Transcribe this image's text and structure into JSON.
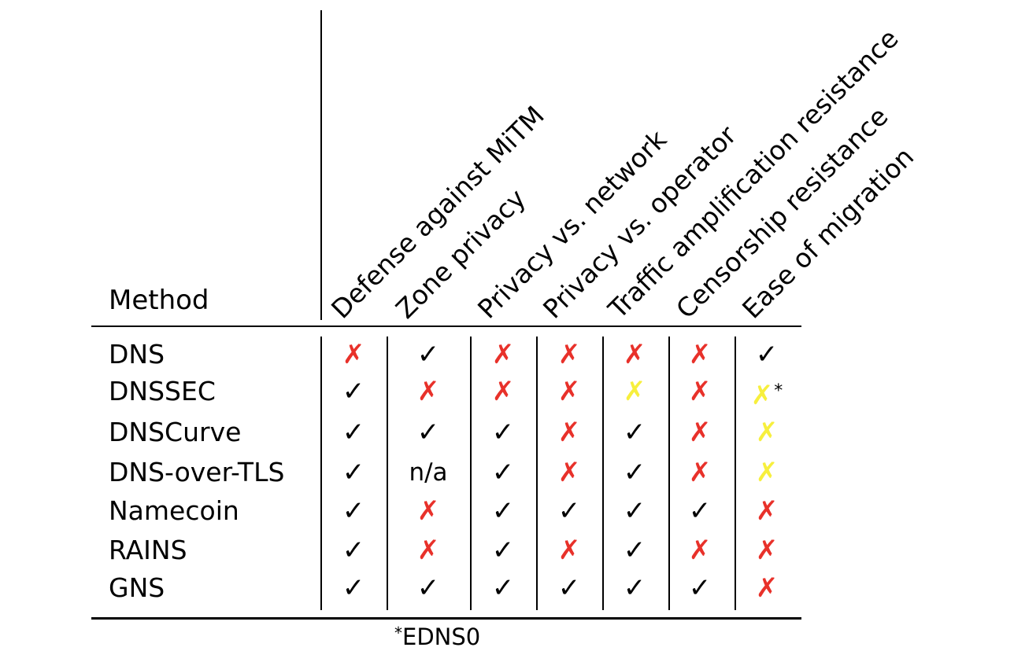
{
  "table": {
    "method_header": "Method",
    "columns": [
      "Defense against MiTM",
      "Zone privacy",
      "Privacy vs. network",
      "Privacy vs. operator",
      "Traffic amplification resistance",
      "Censorship resistance",
      "Ease of migration"
    ],
    "symbols": {
      "check": "✓",
      "cross": "✗",
      "check_color": "#000000",
      "cross_red_color": "#e8312a",
      "cross_yellow_color": "#f7ef3d"
    },
    "rows": [
      {
        "method": "DNS",
        "cells": [
          {
            "v": "✗",
            "k": "cross-red"
          },
          {
            "v": "✓",
            "k": "check"
          },
          {
            "v": "✗",
            "k": "cross-red"
          },
          {
            "v": "✗",
            "k": "cross-red"
          },
          {
            "v": "✗",
            "k": "cross-red"
          },
          {
            "v": "✗",
            "k": "cross-red"
          },
          {
            "v": "✓",
            "k": "check"
          }
        ]
      },
      {
        "method": "DNSSEC",
        "cells": [
          {
            "v": "✓",
            "k": "check"
          },
          {
            "v": "✗",
            "k": "cross-red"
          },
          {
            "v": "✗",
            "k": "cross-red"
          },
          {
            "v": "✗",
            "k": "cross-red"
          },
          {
            "v": "✗",
            "k": "cross-yellow"
          },
          {
            "v": "✗",
            "k": "cross-red"
          },
          {
            "v": "✗",
            "k": "cross-yellow",
            "note": "*"
          }
        ]
      },
      {
        "method": "DNSCurve",
        "cells": [
          {
            "v": "✓",
            "k": "check"
          },
          {
            "v": "✓",
            "k": "check"
          },
          {
            "v": "✓",
            "k": "check"
          },
          {
            "v": "✗",
            "k": "cross-red"
          },
          {
            "v": "✓",
            "k": "check"
          },
          {
            "v": "✗",
            "k": "cross-red"
          },
          {
            "v": "✗",
            "k": "cross-yellow"
          }
        ]
      },
      {
        "method": "DNS-over-TLS",
        "cells": [
          {
            "v": "✓",
            "k": "check"
          },
          {
            "v": "n/a",
            "k": "na"
          },
          {
            "v": "✓",
            "k": "check"
          },
          {
            "v": "✗",
            "k": "cross-red"
          },
          {
            "v": "✓",
            "k": "check"
          },
          {
            "v": "✗",
            "k": "cross-red"
          },
          {
            "v": "✗",
            "k": "cross-yellow"
          }
        ]
      },
      {
        "method": "Namecoin",
        "cells": [
          {
            "v": "✓",
            "k": "check"
          },
          {
            "v": "✗",
            "k": "cross-red"
          },
          {
            "v": "✓",
            "k": "check"
          },
          {
            "v": "✓",
            "k": "check"
          },
          {
            "v": "✓",
            "k": "check"
          },
          {
            "v": "✓",
            "k": "check"
          },
          {
            "v": "✗",
            "k": "cross-red"
          }
        ]
      },
      {
        "method": "RAINS",
        "cells": [
          {
            "v": "✓",
            "k": "check"
          },
          {
            "v": "✗",
            "k": "cross-red"
          },
          {
            "v": "✓",
            "k": "check"
          },
          {
            "v": "✗",
            "k": "cross-red"
          },
          {
            "v": "✓",
            "k": "check"
          },
          {
            "v": "✗",
            "k": "cross-red"
          },
          {
            "v": "✗",
            "k": "cross-red"
          }
        ]
      },
      {
        "method": "GNS",
        "cells": [
          {
            "v": "✓",
            "k": "check"
          },
          {
            "v": "✓",
            "k": "check"
          },
          {
            "v": "✓",
            "k": "check"
          },
          {
            "v": "✓",
            "k": "check"
          },
          {
            "v": "✓",
            "k": "check"
          },
          {
            "v": "✓",
            "k": "check"
          },
          {
            "v": "✗",
            "k": "cross-red"
          }
        ]
      }
    ],
    "footnote_mark": "*",
    "footnote_text": "EDNS0"
  }
}
